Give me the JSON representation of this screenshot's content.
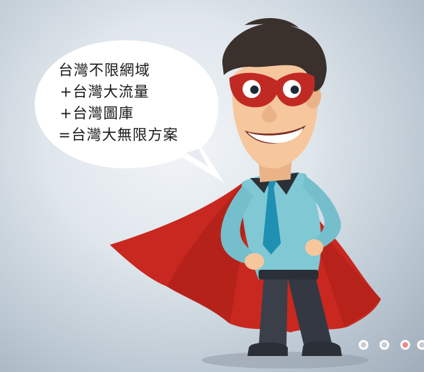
{
  "bubble": {
    "lines": [
      "台灣不限網域",
      "+台灣大流量",
      "+台灣圖庫",
      "=台灣大無限方案"
    ]
  },
  "carousel": {
    "slide_count": 4,
    "active_index": 2,
    "colors": {
      "inactive": "#c9cdd1",
      "active": "#e98b86"
    }
  },
  "palette": {
    "cape": "#c8281f",
    "cape_dark": "#9e1a14",
    "shirt": "#7fc8d4",
    "tie": "#1f8fb2",
    "pants": "#3a3f4a",
    "hair": "#3a302c",
    "skin": "#f6c79c",
    "mask": "#c12a24"
  }
}
